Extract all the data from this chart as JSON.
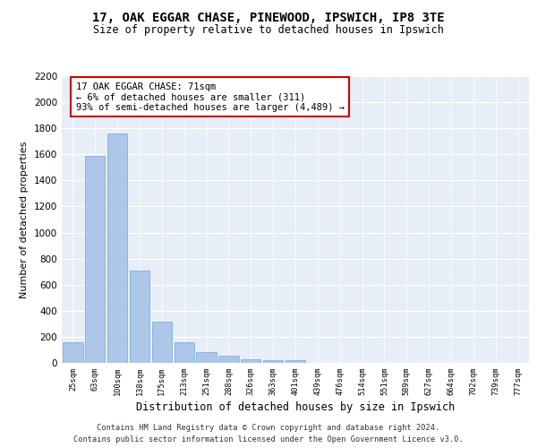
{
  "title1": "17, OAK EGGAR CHASE, PINEWOOD, IPSWICH, IP8 3TE",
  "title2": "Size of property relative to detached houses in Ipswich",
  "xlabel": "Distribution of detached houses by size in Ipswich",
  "ylabel": "Number of detached properties",
  "categories": [
    "25sqm",
    "63sqm",
    "100sqm",
    "138sqm",
    "175sqm",
    "213sqm",
    "251sqm",
    "288sqm",
    "326sqm",
    "363sqm",
    "401sqm",
    "439sqm",
    "476sqm",
    "514sqm",
    "551sqm",
    "589sqm",
    "627sqm",
    "664sqm",
    "702sqm",
    "739sqm",
    "777sqm"
  ],
  "values": [
    155,
    1590,
    1760,
    710,
    315,
    160,
    85,
    52,
    30,
    22,
    18,
    0,
    0,
    0,
    0,
    0,
    0,
    0,
    0,
    0,
    0
  ],
  "bar_color": "#aec6e8",
  "bar_edge_color": "#6aaad4",
  "ylim": [
    0,
    2200
  ],
  "yticks": [
    0,
    200,
    400,
    600,
    800,
    1000,
    1200,
    1400,
    1600,
    1800,
    2000,
    2200
  ],
  "annotation_text": "17 OAK EGGAR CHASE: 71sqm\n← 6% of detached houses are smaller (311)\n93% of semi-detached houses are larger (4,489) →",
  "annotation_box_color": "#ffffff",
  "annotation_edge_color": "#cc0000",
  "bg_color": "#e8eef8",
  "footer_line1": "Contains HM Land Registry data © Crown copyright and database right 2024.",
  "footer_line2": "Contains public sector information licensed under the Open Government Licence v3.0."
}
